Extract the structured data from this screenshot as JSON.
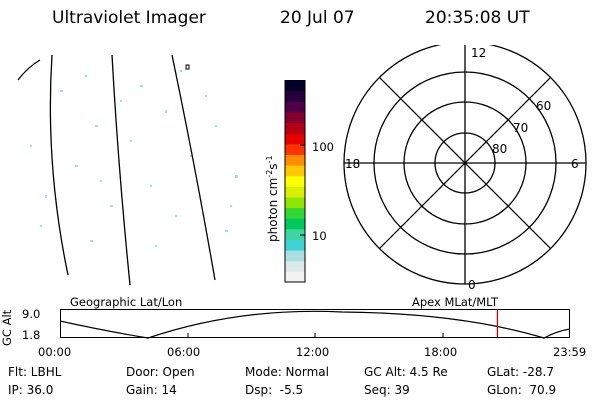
{
  "header": {
    "title": "Ultraviolet Imager",
    "date": "20 Jul 07",
    "time": "20:35:08 UT"
  },
  "colorbar": {
    "label": "photon cm",
    "label_sup1": "-2",
    "label_mid": "s",
    "label_sup2": "-1",
    "tick_100": "100",
    "tick_10": "10",
    "colors": [
      "#f2f2f2",
      "#dde8e8",
      "#a9dfe3",
      "#3fd3d6",
      "#3fd6a6",
      "#00c85a",
      "#33d633",
      "#8ee600",
      "#d8f000",
      "#ffff00",
      "#ffc800",
      "#ff8c00",
      "#ff3200",
      "#e60000",
      "#b40014",
      "#82002d",
      "#500046",
      "#28003c",
      "#000028"
    ]
  },
  "polar": {
    "label_12": "12",
    "label_18": "18",
    "label_6": "6",
    "label_0": "0",
    "label_60": "60",
    "label_70": "70",
    "label_80": "80"
  },
  "orbit": {
    "left_title": "Geographic Lat/Lon",
    "right_title": "Apex MLat/MLT",
    "axis_label": "GC Alt",
    "ymax": "9.0",
    "ymin": "1.8",
    "times": [
      "00:00",
      "06:00",
      "12:00",
      "18:00",
      "23:59"
    ],
    "current_time_hours": 20.585,
    "marker_color": "#cc0000"
  },
  "info": {
    "filter": "Flt: LBHL",
    "ip": "IP: 36.0",
    "door": "Door: Open",
    "gain": "Gain: 14",
    "mode": "Mode: Normal",
    "dsp": "Dsp:  -5.5",
    "gcalt": "GC Alt: 4.5 Re",
    "seq": "Seq: 39",
    "glat": "GLat: -28.7",
    "glon": "GLon:  70.9"
  }
}
